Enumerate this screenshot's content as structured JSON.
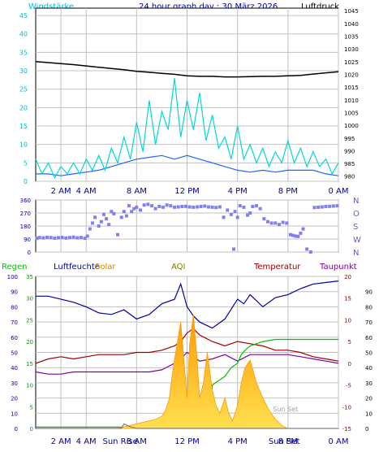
{
  "title": "24 hour graph day : 30 März 2026",
  "colors": {
    "background": "#ffffff",
    "plot_bg": "#ffffff",
    "grid": "#c0c0c0",
    "wind": "#00d8d8",
    "wind_avg": "#1e66ff",
    "pressure": "#000000",
    "direction": "#8080f0",
    "humidity": "#0000a0",
    "temperature": "#a00000",
    "dewpoint": "#8000a0",
    "rain": "#00c000",
    "solar": "#ff9900",
    "solar_light": "#ffe050",
    "uv": "#808080",
    "sun_label": "#0000a0",
    "axis_text": "#000000"
  },
  "chart_data": [
    {
      "type": "line",
      "name": "wind-pressure",
      "left_axis_label": "Windstärke",
      "right_axis_label": "Luftdruck",
      "left_ylim": [
        0,
        47
      ],
      "left_ticks": [
        0,
        5,
        10,
        15,
        20,
        25,
        30,
        35,
        40,
        45
      ],
      "right_ylim": [
        978,
        1046
      ],
      "right_ticks": [
        980,
        985,
        990,
        995,
        1000,
        1005,
        1010,
        1015,
        1020,
        1025,
        1030,
        1035,
        1040,
        1045
      ],
      "x_hours": [
        0,
        24
      ],
      "x_tick_hours": [
        2,
        4,
        8,
        12,
        16,
        20,
        24
      ],
      "x_tick_labels": [
        "2 AM",
        "4 AM",
        "8 AM",
        "12 PM",
        "4 PM",
        "8 PM",
        "0 AM"
      ],
      "grid": true,
      "series": [
        {
          "key": "pressure",
          "axis": "right",
          "x": [
            0,
            1,
            2,
            3,
            4,
            5,
            6,
            7,
            8,
            9,
            10,
            11,
            12,
            13,
            14,
            15,
            16,
            17,
            18,
            19,
            20,
            21,
            22,
            23,
            24
          ],
          "y": [
            1025,
            1024.6,
            1024.2,
            1023.8,
            1023.3,
            1022.8,
            1022.3,
            1021.8,
            1021.2,
            1020.8,
            1020.4,
            1020,
            1019.4,
            1019.2,
            1019.2,
            1019,
            1019,
            1019.1,
            1019.2,
            1019.2,
            1019.4,
            1019.6,
            1020.1,
            1020.6,
            1021
          ]
        },
        {
          "key": "wind_avg",
          "axis": "left",
          "x": [
            0,
            1,
            2,
            3,
            4,
            5,
            6,
            7,
            8,
            9,
            10,
            11,
            12,
            13,
            14,
            15,
            16,
            17,
            18,
            19,
            20,
            21,
            22,
            23,
            24
          ],
          "y": [
            2,
            2,
            1.5,
            2,
            2.5,
            3,
            4,
            5,
            6,
            6.5,
            7,
            6,
            7,
            6,
            5,
            4,
            3,
            2.5,
            3,
            2.5,
            3,
            3,
            3,
            2,
            1.5
          ]
        },
        {
          "key": "wind",
          "axis": "left",
          "x": [
            0,
            0.5,
            1,
            1.5,
            2,
            2.5,
            3,
            3.5,
            4,
            4.5,
            5,
            5.5,
            6,
            6.5,
            7,
            7.5,
            8,
            8.5,
            9,
            9.5,
            10,
            10.5,
            11,
            11.5,
            12,
            12.5,
            13,
            13.5,
            14,
            14.5,
            15,
            15.5,
            16,
            16.5,
            17,
            17.5,
            18,
            18.5,
            19,
            19.5,
            20,
            20.5,
            21,
            21.5,
            22,
            22.5,
            23,
            23.5,
            24
          ],
          "y": [
            6,
            2,
            5,
            1,
            4,
            2,
            5,
            2,
            6,
            3,
            7,
            3,
            9,
            5,
            12,
            6,
            16,
            8,
            22,
            10,
            19,
            14,
            28,
            12,
            22,
            14,
            24,
            11,
            18,
            9,
            12,
            6,
            15,
            6,
            10,
            5,
            9,
            4,
            8,
            5,
            11,
            5,
            9,
            4,
            8,
            4,
            6,
            2,
            5
          ]
        }
      ]
    },
    {
      "type": "scatter",
      "name": "wind-direction",
      "left_ylim": [
        0,
        360
      ],
      "left_ticks": [
        0,
        90,
        180,
        270,
        360
      ],
      "compass_labels": [
        "N",
        "W",
        "S",
        "O",
        "N"
      ],
      "x_hours": [
        0,
        24
      ],
      "x_tick_hours": [
        2,
        4,
        8,
        12,
        16,
        20,
        24
      ],
      "grid": true,
      "series": [
        {
          "key": "direction",
          "x": [
            0.1,
            0.3,
            0.6,
            0.9,
            1.2,
            1.5,
            1.8,
            2.1,
            2.4,
            2.7,
            3.0,
            3.3,
            3.6,
            3.9,
            4.1,
            4.3,
            4.5,
            4.7,
            5.0,
            5.2,
            5.4,
            5.6,
            5.8,
            6.0,
            6.2,
            6.5,
            6.8,
            7.0,
            7.2,
            7.4,
            7.6,
            7.8,
            8.0,
            8.3,
            8.6,
            8.9,
            9.2,
            9.5,
            9.8,
            10.1,
            10.4,
            10.7,
            11.0,
            11.3,
            11.6,
            11.9,
            12.2,
            12.5,
            12.8,
            13.1,
            13.4,
            13.7,
            14.0,
            14.3,
            14.6,
            14.9,
            15.2,
            15.5,
            15.7,
            15.8,
            16.0,
            16.2,
            16.5,
            16.8,
            17.0,
            17.2,
            17.5,
            17.8,
            18.1,
            18.4,
            18.7,
            19.0,
            19.3,
            19.6,
            19.9,
            20.2,
            20.4,
            20.6,
            20.8,
            21.0,
            21.2,
            21.5,
            21.8,
            22.1,
            22.4,
            22.7,
            23.0,
            23.3,
            23.6,
            23.9
          ],
          "y": [
            95,
            100,
            98,
            102,
            100,
            96,
            99,
            101,
            97,
            100,
            103,
            98,
            100,
            95,
            110,
            160,
            200,
            240,
            180,
            210,
            260,
            230,
            190,
            280,
            265,
            120,
            240,
            280,
            250,
            320,
            280,
            300,
            310,
            290,
            325,
            330,
            320,
            300,
            315,
            310,
            325,
            320,
            310,
            312,
            315,
            316,
            312,
            310,
            312,
            315,
            318,
            312,
            310,
            308,
            312,
            240,
            290,
            260,
            20,
            280,
            240,
            320,
            310,
            255,
            270,
            315,
            320,
            300,
            230,
            210,
            200,
            200,
            190,
            205,
            200,
            120,
            115,
            110,
            108,
            130,
            160,
            20,
            0,
            308,
            310,
            312,
            315,
            316,
            318,
            320
          ]
        }
      ]
    },
    {
      "type": "area",
      "name": "rain-humidity-solar-temp",
      "labels": [
        "Regen",
        "Luftfeuchte",
        "Solar",
        "AQI",
        "Temperatur",
        "Taupunkt"
      ],
      "rain_ylim": [
        0,
        35
      ],
      "rain_ticks": [
        0,
        5,
        10,
        15,
        20,
        25,
        30,
        35
      ],
      "humidity_ylim": [
        0,
        100
      ],
      "humidity_ticks": [
        0,
        10,
        20,
        30,
        40,
        50,
        60,
        70,
        80,
        90,
        100
      ],
      "temp_ylim": [
        -15,
        20
      ],
      "temp_ticks": [
        -15,
        -10,
        -5,
        0,
        5,
        10,
        15,
        20
      ],
      "aqi_ticks": [
        0,
        10,
        20,
        30,
        40,
        50,
        60,
        70,
        80,
        90
      ],
      "x_hours": [
        0,
        24
      ],
      "x_tick_hours": [
        2,
        4,
        8,
        12,
        16,
        20,
        24
      ],
      "x_tick_labels": [
        "2 AM",
        "4 AM",
        "8 AM",
        "12 PM",
        "4 PM",
        "8 PM",
        "0 AM"
      ],
      "sun_labels": [
        {
          "text": "Sun Rise",
          "hour": 6.7,
          "bold": false
        },
        {
          "text": "Sun Set",
          "hour": 19.8,
          "bold": false
        },
        {
          "text": "Sun Set",
          "hour": 19.7,
          "bold": true
        }
      ],
      "grid": true,
      "series": [
        {
          "key": "humidity",
          "axis": "humidity",
          "x": [
            0,
            1,
            2,
            3,
            4,
            5,
            6,
            7,
            8,
            9,
            10,
            11,
            11.5,
            12,
            12.5,
            13,
            14,
            15,
            16,
            16.5,
            17,
            18,
            19,
            20,
            21,
            22,
            23,
            24
          ],
          "y": [
            87,
            87,
            85,
            83,
            80,
            76,
            75,
            78,
            72,
            75,
            82,
            85,
            95,
            80,
            74,
            70,
            66,
            72,
            85,
            82,
            88,
            80,
            86,
            88,
            92,
            95,
            96,
            97
          ]
        },
        {
          "key": "temperature",
          "axis": "temp",
          "x": [
            0,
            1,
            2,
            3,
            4,
            5,
            6,
            7,
            8,
            9,
            10,
            11,
            11.5,
            12,
            12.5,
            13,
            14,
            15,
            16,
            17,
            18,
            19,
            20,
            21,
            22,
            23,
            24
          ],
          "y": [
            0,
            1,
            1.5,
            1,
            1.5,
            2,
            2,
            2,
            2.5,
            2.5,
            3,
            4,
            5,
            7,
            8,
            6.5,
            5,
            4,
            5,
            4.5,
            4,
            3,
            3,
            2.5,
            1.5,
            1,
            0.5
          ]
        },
        {
          "key": "dewpoint",
          "axis": "temp",
          "x": [
            0,
            1,
            2,
            3,
            4,
            5,
            6,
            7,
            8,
            9,
            10,
            11,
            11.5,
            12,
            12.5,
            13,
            14,
            15,
            16,
            17,
            18,
            19,
            20,
            21,
            22,
            23,
            24
          ],
          "y": [
            -2,
            -2.5,
            -2.5,
            -2,
            -2,
            -2,
            -2,
            -2,
            -2,
            -2,
            -1.5,
            0,
            1,
            2.5,
            1.5,
            0.5,
            1,
            2,
            0.5,
            2,
            2,
            2,
            2,
            1.5,
            1,
            0.5,
            0
          ]
        },
        {
          "key": "rain",
          "axis": "rain",
          "x": [
            0,
            13.8,
            14,
            14.5,
            15.0,
            15.5,
            16,
            16.3,
            16.6,
            17,
            18,
            19,
            20.5,
            24
          ],
          "y": [
            0.3,
            0.3,
            10,
            11,
            12,
            14,
            15,
            17,
            18,
            19,
            20,
            20.5,
            20.5,
            20.5
          ]
        },
        {
          "key": "solar",
          "axis": "humidity",
          "x": [
            0,
            6.5,
            7,
            7.5,
            8,
            8.5,
            9,
            9.5,
            10,
            10.3,
            10.6,
            10.9,
            11.2,
            11.5,
            11.8,
            12,
            12.2,
            12.5,
            12.8,
            13,
            13.3,
            13.6,
            14,
            14.3,
            14.6,
            15,
            15.3,
            15.6,
            16,
            16.3,
            16.6,
            17,
            17.5,
            18,
            18.5,
            19,
            19.5,
            20,
            24
          ],
          "y": [
            0,
            0,
            1,
            2,
            3,
            4,
            5,
            6,
            8,
            12,
            20,
            40,
            55,
            70,
            40,
            20,
            55,
            75,
            45,
            20,
            30,
            50,
            25,
            15,
            10,
            20,
            10,
            5,
            15,
            30,
            40,
            45,
            30,
            20,
            12,
            6,
            2,
            0,
            0
          ]
        },
        {
          "key": "uv",
          "axis": "humidity",
          "x": [
            0,
            6.8,
            7,
            7.5,
            8,
            24
          ],
          "y": [
            0,
            0,
            3,
            1,
            0,
            0
          ]
        }
      ]
    }
  ]
}
